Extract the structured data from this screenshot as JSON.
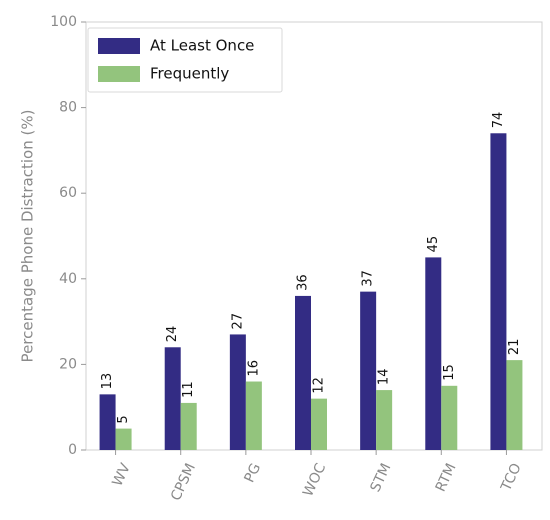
{
  "chart_data": {
    "type": "bar",
    "categories": [
      "WV",
      "CPSM",
      "PG",
      "WOC",
      "STM",
      "RTM",
      "TCO"
    ],
    "series": [
      {
        "name": "At Least Once",
        "values": [
          13,
          24,
          27,
          36,
          37,
          45,
          74
        ],
        "color": "#332c84"
      },
      {
        "name": "Frequently",
        "values": [
          5,
          11,
          16,
          12,
          14,
          15,
          21
        ],
        "color": "#93c47d"
      }
    ],
    "title": "",
    "xlabel": "",
    "ylabel": "Percentage Phone Distraction (%)",
    "ylim": [
      0,
      100
    ],
    "yticks": [
      0,
      20,
      40,
      60,
      80,
      100
    ],
    "grid": false,
    "legend_position": "top-left",
    "data_labels": true
  }
}
